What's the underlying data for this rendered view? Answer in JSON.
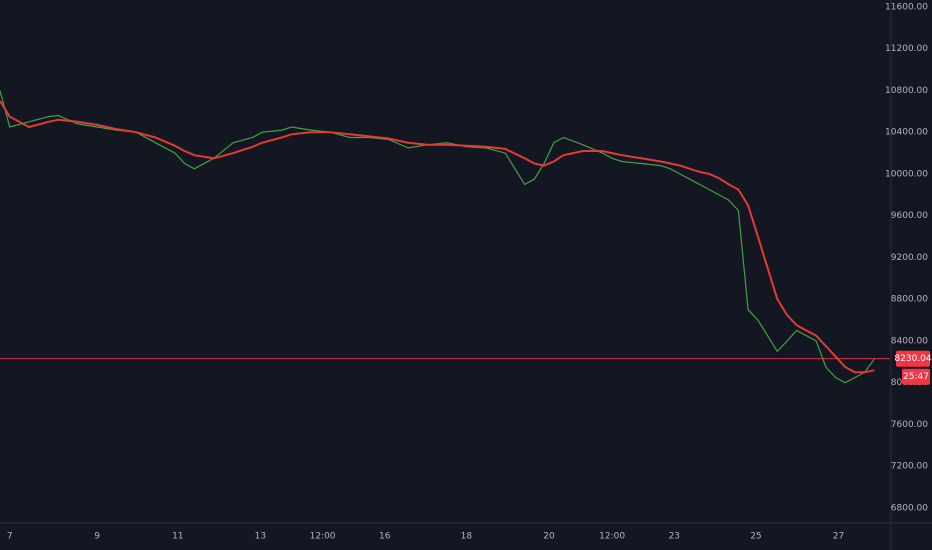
{
  "chart_data": {
    "type": "line",
    "x": [
      0,
      1,
      3,
      5,
      6,
      8,
      10,
      12,
      14,
      16,
      18,
      19,
      20,
      22,
      24,
      26,
      27,
      29,
      30,
      32,
      34,
      36,
      38,
      40,
      42,
      44,
      46,
      48,
      50,
      52,
      54,
      55,
      56,
      57,
      58,
      60,
      62,
      63,
      64,
      66,
      68,
      69,
      70,
      71,
      72,
      73,
      74,
      75,
      76,
      77,
      78,
      79,
      80,
      81,
      82,
      83,
      84,
      85,
      86,
      87,
      88,
      89,
      90
    ],
    "series": [
      {
        "color": "#43a047",
        "values": [
          10800,
          10450,
          10500,
          10550,
          10560,
          10480,
          10450,
          10420,
          10400,
          10300,
          10200,
          10100,
          10050,
          10150,
          10300,
          10350,
          10400,
          10420,
          10450,
          10420,
          10400,
          10350,
          10350,
          10330,
          10250,
          10280,
          10300,
          10260,
          10250,
          10200,
          9900,
          9950,
          10100,
          10300,
          10350,
          10280,
          10200,
          10150,
          10120,
          10100,
          10080,
          10050,
          10000,
          9950,
          9900,
          9850,
          9800,
          9750,
          9650,
          8700,
          8600,
          8450,
          8300,
          8400,
          8500,
          8450,
          8400,
          8150,
          8050,
          8000,
          8050,
          8100,
          8230.04
        ]
      },
      {
        "color": "#e53935",
        "values": [
          10700,
          10550,
          10450,
          10500,
          10520,
          10500,
          10470,
          10430,
          10400,
          10350,
          10270,
          10220,
          10180,
          10150,
          10200,
          10260,
          10300,
          10350,
          10380,
          10400,
          10400,
          10380,
          10360,
          10340,
          10300,
          10280,
          10280,
          10270,
          10260,
          10240,
          10150,
          10100,
          10080,
          10120,
          10180,
          10220,
          10220,
          10200,
          10180,
          10150,
          10120,
          10100,
          10080,
          10050,
          10020,
          10000,
          9960,
          9900,
          9850,
          9700,
          9400,
          9100,
          8800,
          8650,
          8550,
          8500,
          8450,
          8350,
          8250,
          8150,
          8100,
          8100,
          8120
        ]
      }
    ],
    "xlim": [
      0,
      91.6
    ],
    "xticks": [
      {
        "value": 1,
        "label": "7"
      },
      {
        "value": 10,
        "label": "9"
      },
      {
        "value": 18.3,
        "label": "11"
      },
      {
        "value": 26.8,
        "label": "13"
      },
      {
        "value": 33.2,
        "label": "12:00"
      },
      {
        "value": 39.6,
        "label": "16"
      },
      {
        "value": 48,
        "label": "18"
      },
      {
        "value": 56.5,
        "label": "20"
      },
      {
        "value": 63,
        "label": "12:00"
      },
      {
        "value": 69.4,
        "label": "23"
      },
      {
        "value": 77.8,
        "label": "25"
      },
      {
        "value": 86.3,
        "label": "27"
      }
    ],
    "ylim": [
      6675,
      11667
    ],
    "yticks": [
      {
        "value": 6800,
        "label": "6800.00"
      },
      {
        "value": 7200,
        "label": "7200.00"
      },
      {
        "value": 7600,
        "label": "7600.00"
      },
      {
        "value": 8000,
        "label": "8000.00"
      },
      {
        "value": 8400,
        "label": "8400.00"
      },
      {
        "value": 8800,
        "label": "8800.00"
      },
      {
        "value": 9200,
        "label": "9200.00"
      },
      {
        "value": 9600,
        "label": "9600.00"
      },
      {
        "value": 10000,
        "label": "10000.00"
      },
      {
        "value": 10400,
        "label": "10400.00"
      },
      {
        "value": 10800,
        "label": "10800.00"
      },
      {
        "value": 11200,
        "label": "11200.00"
      },
      {
        "value": 11600,
        "label": "11600.00"
      }
    ],
    "last_price": {
      "value": 8230.04,
      "label": "8230.04",
      "color": "#f23645"
    },
    "countdown": "25:47"
  }
}
